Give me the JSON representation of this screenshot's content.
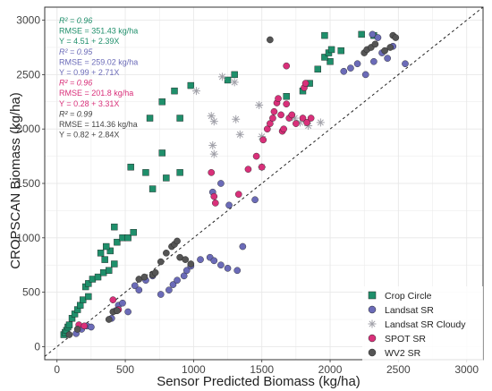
{
  "colors": {
    "crop_circle": "#1f8f6b",
    "landsat": "#6b6bb8",
    "landsat_cloudy": "#a0a0a8",
    "spot": "#d9307a",
    "wv2": "#555555",
    "grid": "#e8e8e8",
    "frame": "#333333"
  },
  "chart_data": {
    "type": "scatter",
    "xlabel": "Sensor Predicted Biomass (kg/ha)",
    "ylabel": "CROPSCAN Biomass (kg/ha)",
    "xlim": [
      -90,
      3120
    ],
    "ylim": [
      -120,
      3120
    ],
    "x_ticks": [
      0,
      500,
      1000,
      1500,
      2000,
      2500,
      3000
    ],
    "y_ticks": [
      0,
      500,
      1000,
      1500,
      2000,
      2500,
      3000
    ],
    "grid": true,
    "reference_line": "1:1 dashed",
    "legend_position": "bottom-right",
    "annotations": [
      {
        "series": "Crop Circle",
        "r2": "R² = 0.96",
        "rmse": "RMSE = 351.43 kg/ha",
        "eq": "Y = 4.51 + 2.39X"
      },
      {
        "series": "Landsat SR",
        "r2": "R² = 0.95",
        "rmse": "RMSE = 259.02 kg/ha",
        "eq": "Y = 0.99 + 2.71X"
      },
      {
        "series": "SPOT SR",
        "r2": "R² = 0.96",
        "rmse": "RMSE = 201.8 kg/ha",
        "eq": "Y = 0.28 + 3.31X"
      },
      {
        "series": "WV2 SR",
        "r2": "R² = 0.99",
        "rmse": "RMSE = 114.36 kg/ha",
        "eq": "Y = 0.82 + 2.84X"
      }
    ],
    "series": [
      {
        "name": "Crop Circle",
        "marker": "square",
        "points": [
          [
            50,
            110
          ],
          [
            60,
            130
          ],
          [
            70,
            150
          ],
          [
            80,
            180
          ],
          [
            90,
            200
          ],
          [
            110,
            260
          ],
          [
            130,
            300
          ],
          [
            150,
            340
          ],
          [
            170,
            380
          ],
          [
            190,
            430
          ],
          [
            230,
            460
          ],
          [
            210,
            550
          ],
          [
            230,
            580
          ],
          [
            260,
            620
          ],
          [
            300,
            640
          ],
          [
            340,
            680
          ],
          [
            380,
            700
          ],
          [
            420,
            760
          ],
          [
            350,
            800
          ],
          [
            320,
            860
          ],
          [
            390,
            880
          ],
          [
            360,
            920
          ],
          [
            440,
            960
          ],
          [
            480,
            1000
          ],
          [
            520,
            1000
          ],
          [
            560,
            1050
          ],
          [
            420,
            1100
          ],
          [
            700,
            1450
          ],
          [
            540,
            1650
          ],
          [
            650,
            1600
          ],
          [
            800,
            1550
          ],
          [
            900,
            1600
          ],
          [
            770,
            1780
          ],
          [
            680,
            2100
          ],
          [
            900,
            2100
          ],
          [
            770,
            2250
          ],
          [
            860,
            2350
          ],
          [
            980,
            2400
          ],
          [
            1250,
            2450
          ],
          [
            1300,
            2500
          ],
          [
            1680,
            2300
          ],
          [
            1800,
            2350
          ],
          [
            1850,
            2420
          ],
          [
            1910,
            2550
          ],
          [
            2000,
            2620
          ],
          [
            1960,
            2660
          ],
          [
            1990,
            2700
          ],
          [
            2010,
            2730
          ],
          [
            2080,
            2720
          ],
          [
            1960,
            2860
          ],
          [
            2230,
            2870
          ],
          [
            2320,
            2860
          ]
        ]
      },
      {
        "name": "Landsat SR",
        "marker": "circle",
        "points": [
          [
            140,
            120
          ],
          [
            180,
            160
          ],
          [
            220,
            190
          ],
          [
            250,
            180
          ],
          [
            400,
            260
          ],
          [
            430,
            330
          ],
          [
            450,
            380
          ],
          [
            480,
            400
          ],
          [
            520,
            320
          ],
          [
            570,
            560
          ],
          [
            600,
            520
          ],
          [
            650,
            610
          ],
          [
            700,
            650
          ],
          [
            760,
            480
          ],
          [
            820,
            520
          ],
          [
            850,
            570
          ],
          [
            880,
            610
          ],
          [
            930,
            650
          ],
          [
            950,
            700
          ],
          [
            980,
            740
          ],
          [
            1050,
            800
          ],
          [
            1120,
            820
          ],
          [
            1150,
            790
          ],
          [
            1200,
            750
          ],
          [
            1250,
            720
          ],
          [
            1320,
            700
          ],
          [
            1360,
            920
          ],
          [
            1140,
            1420
          ],
          [
            1200,
            1500
          ],
          [
            1260,
            1300
          ],
          [
            1450,
            1350
          ],
          [
            2100,
            2530
          ],
          [
            2150,
            2560
          ],
          [
            2200,
            2600
          ],
          [
            2260,
            2500
          ],
          [
            2320,
            2620
          ],
          [
            2380,
            2700
          ],
          [
            2420,
            2650
          ],
          [
            2460,
            2760
          ],
          [
            2550,
            2600
          ],
          [
            2310,
            2870
          ],
          [
            2350,
            2840
          ]
        ]
      },
      {
        "name": "Landsat SR Cloudy",
        "marker": "asterisk",
        "points": [
          [
            1020,
            2350
          ],
          [
            1130,
            2120
          ],
          [
            1150,
            2070
          ],
          [
            1140,
            1850
          ],
          [
            1150,
            1770
          ],
          [
            1210,
            2480
          ],
          [
            1300,
            2430
          ],
          [
            1310,
            2090
          ],
          [
            1340,
            1950
          ],
          [
            1480,
            2220
          ],
          [
            1500,
            1930
          ],
          [
            1500,
            1650
          ],
          [
            1740,
            2100
          ],
          [
            1780,
            2060
          ],
          [
            1840,
            2030
          ],
          [
            1930,
            2060
          ]
        ]
      },
      {
        "name": "SPOT SR",
        "marker": "circle",
        "points": [
          [
            160,
            200
          ],
          [
            200,
            190
          ],
          [
            410,
            430
          ],
          [
            450,
            340
          ],
          [
            1130,
            1600
          ],
          [
            1150,
            1380
          ],
          [
            1160,
            1320
          ],
          [
            1330,
            1400
          ],
          [
            1400,
            1630
          ],
          [
            1460,
            1750
          ],
          [
            1500,
            1650
          ],
          [
            1510,
            1900
          ],
          [
            1540,
            2000
          ],
          [
            1560,
            2050
          ],
          [
            1580,
            2100
          ],
          [
            1590,
            2160
          ],
          [
            1610,
            2240
          ],
          [
            1620,
            2280
          ],
          [
            1640,
            2130
          ],
          [
            1650,
            1980
          ],
          [
            1660,
            2000
          ],
          [
            1680,
            2230
          ],
          [
            1700,
            2100
          ],
          [
            1720,
            2130
          ],
          [
            1750,
            2050
          ],
          [
            1800,
            2100
          ],
          [
            1810,
            2380
          ],
          [
            1820,
            2420
          ],
          [
            1680,
            2580
          ],
          [
            1830,
            2060
          ],
          [
            1860,
            2100
          ]
        ]
      },
      {
        "name": "WV2 SR",
        "marker": "circle",
        "points": [
          [
            90,
            110
          ],
          [
            150,
            160
          ],
          [
            380,
            250
          ],
          [
            410,
            320
          ],
          [
            440,
            330
          ],
          [
            700,
            660
          ],
          [
            720,
            680
          ],
          [
            760,
            780
          ],
          [
            800,
            860
          ],
          [
            840,
            920
          ],
          [
            860,
            940
          ],
          [
            880,
            970
          ],
          [
            900,
            820
          ],
          [
            940,
            800
          ],
          [
            980,
            760
          ],
          [
            600,
            620
          ],
          [
            640,
            640
          ],
          [
            1560,
            2820
          ],
          [
            2250,
            2700
          ],
          [
            2270,
            2730
          ],
          [
            2300,
            2750
          ],
          [
            2330,
            2780
          ],
          [
            2400,
            2720
          ],
          [
            2440,
            2750
          ],
          [
            2460,
            2860
          ],
          [
            2480,
            2840
          ]
        ]
      }
    ]
  }
}
